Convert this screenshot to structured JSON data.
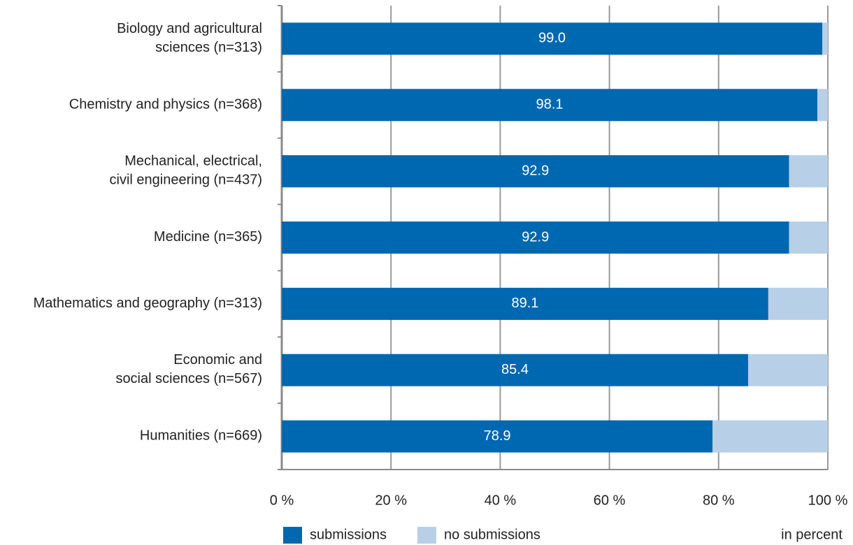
{
  "chart_data": {
    "type": "stacked_barh",
    "categories": [
      "Biology and agricultural\nsciences (n=313)",
      "Chemistry and physics (n=368)",
      "Mechanical, electrical,\ncivil engineering (n=437)",
      "Medicine (n=365)",
      "Mathematics and geography (n=313)",
      "Economic and\nsocial sciences (n=567)",
      "Humanities (n=669)"
    ],
    "series": [
      {
        "name": "submissions",
        "color": "#0068b0",
        "values": [
          99.0,
          98.1,
          92.9,
          92.9,
          89.1,
          85.4,
          78.9
        ],
        "value_labels": [
          "99.0",
          "98.1",
          "92.9",
          "92.9",
          "89.1",
          "85.4",
          "78.9"
        ]
      },
      {
        "name": "no submissions",
        "color": "#b8cfe8",
        "values": [
          1.0,
          1.9,
          7.1,
          7.1,
          10.9,
          14.6,
          21.1
        ]
      }
    ],
    "xlim": [
      0,
      100
    ],
    "xticks": [
      {
        "value": 0,
        "label": "0 %"
      },
      {
        "value": 20,
        "label": "20 %"
      },
      {
        "value": 40,
        "label": "40 %"
      },
      {
        "value": 60,
        "label": "60 %"
      },
      {
        "value": 80,
        "label": "80 %"
      },
      {
        "value": 100,
        "label": "100 %"
      }
    ],
    "grid": true,
    "unit_note": "in percent"
  }
}
